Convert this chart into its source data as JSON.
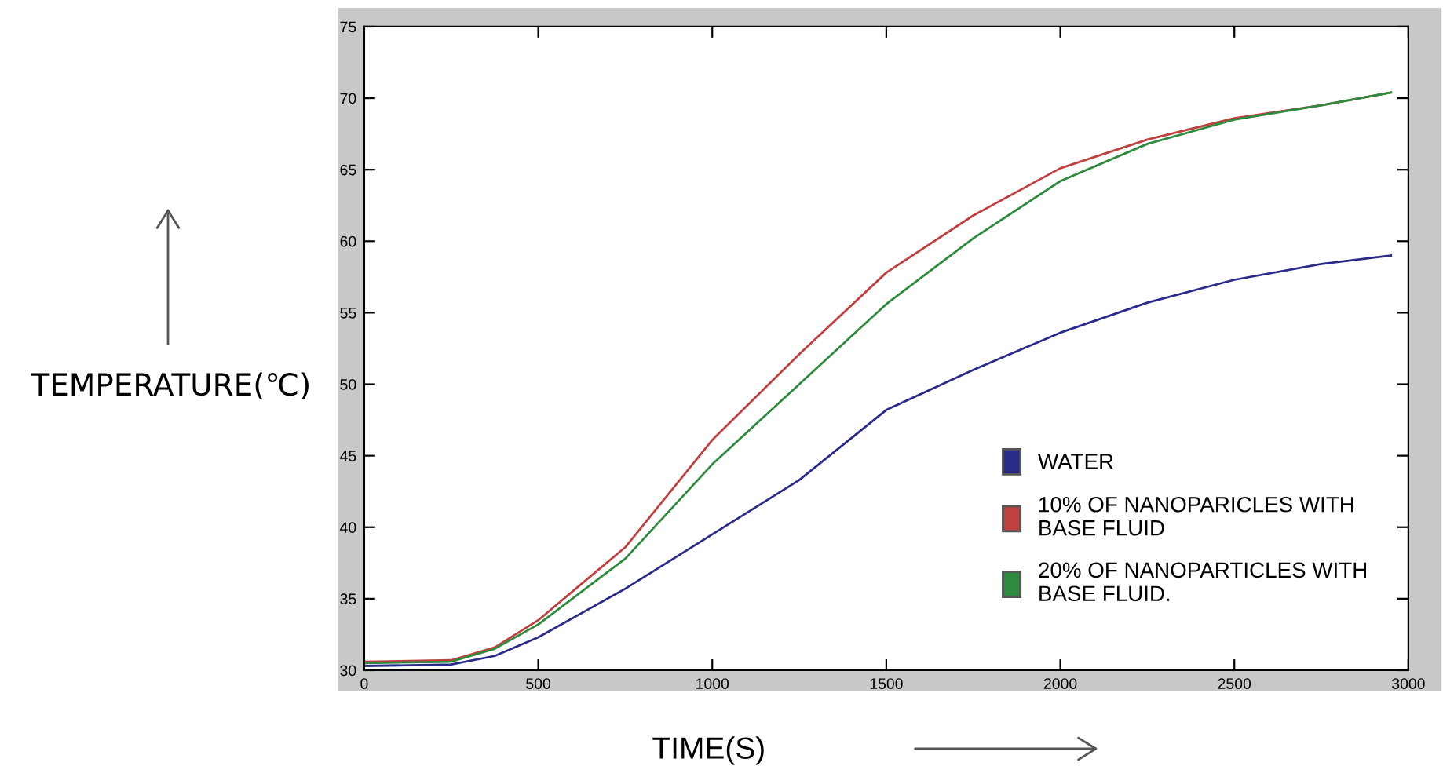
{
  "chart_data": {
    "type": "line",
    "xlabel": "TIME(S)",
    "ylabel": "TEMPERATURE(℃)",
    "x": [
      0,
      250,
      375,
      500,
      750,
      1000,
      1250,
      1500,
      1750,
      2000,
      2250,
      2500,
      2750,
      2950
    ],
    "series": [
      {
        "name": "WATER",
        "color": "#2a2a8a",
        "values": [
          30.3,
          30.4,
          31.0,
          32.3,
          35.7,
          39.5,
          43.3,
          48.2,
          51.0,
          53.6,
          55.7,
          57.3,
          58.4,
          59.0
        ]
      },
      {
        "name": "10% OF NANOPARICLES WITH BASE FLUID",
        "color": "#c04040",
        "values": [
          30.6,
          30.7,
          31.6,
          33.5,
          38.6,
          46.1,
          52.1,
          57.8,
          61.8,
          65.1,
          67.1,
          68.6,
          69.5,
          70.4
        ]
      },
      {
        "name": "20% OF NANOPARTICLES WITH BASE FLUID.",
        "color": "#2e8b3e",
        "values": [
          30.5,
          30.6,
          31.5,
          33.2,
          37.8,
          44.4,
          50.0,
          55.6,
          60.2,
          64.2,
          66.8,
          68.5,
          69.5,
          70.4
        ]
      }
    ],
    "xlim": [
      0,
      3000
    ],
    "ylim": [
      30,
      75
    ],
    "xticks": [
      0,
      500,
      1000,
      1500,
      2000,
      2500,
      3000
    ],
    "yticks": [
      30,
      35,
      40,
      45,
      50,
      55,
      60,
      65,
      70,
      75
    ],
    "grid": false,
    "legend": "bottom right",
    "marker": "none",
    "line_style": "solid"
  }
}
